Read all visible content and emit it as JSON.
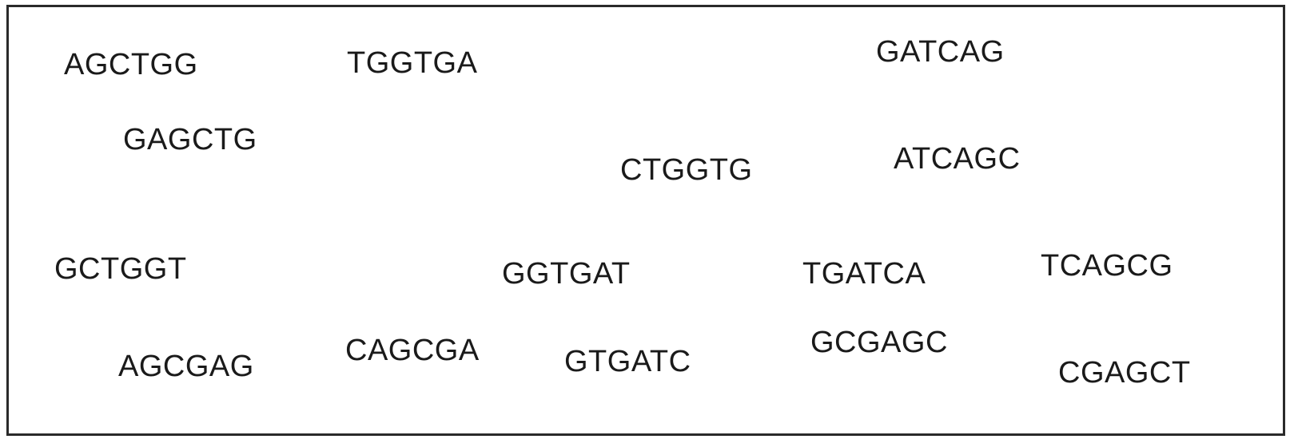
{
  "kmers": [
    "AGCTGG",
    "TGGTGA",
    "GATCAG",
    "GAGCTG",
    "CTGGTG",
    "ATCAGC",
    "GCTGGT",
    "GGTGAT",
    "TGATCA",
    "TCAGCG",
    "AGCGAG",
    "CAGCGA",
    "GTGATC",
    "GCGAGC",
    "CGAGCT"
  ],
  "colors": {
    "border": "#2a2a2a",
    "text": "#1a1a1a",
    "background": "#ffffff"
  }
}
